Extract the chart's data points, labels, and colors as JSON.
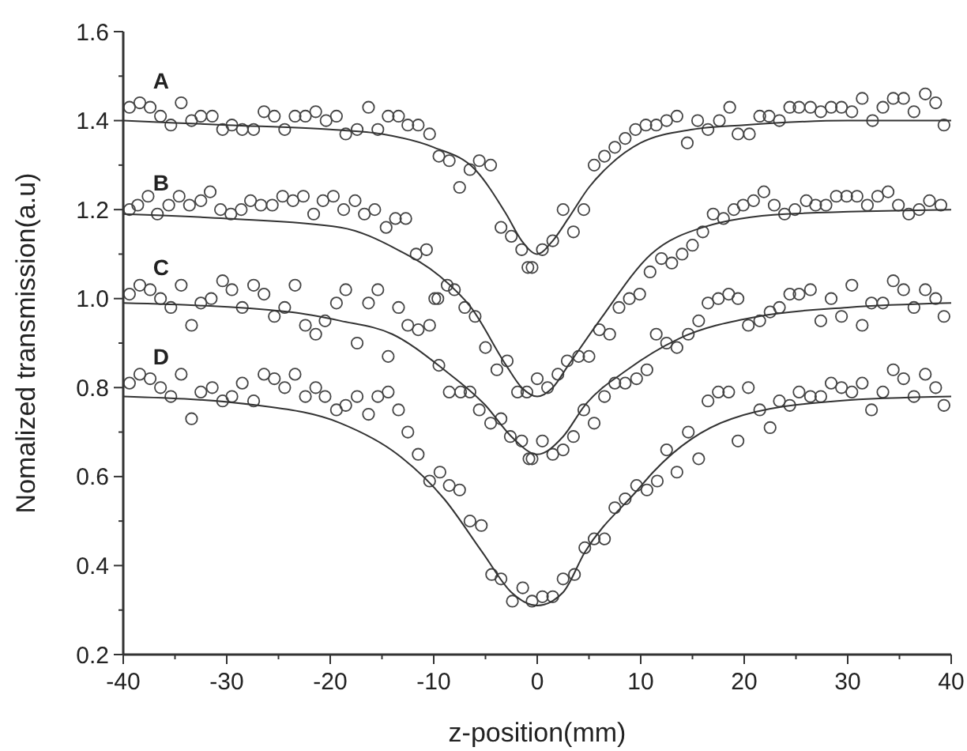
{
  "chart_data": {
    "type": "scatter",
    "xlabel": "z-position(mm)",
    "ylabel": "Nomalized transmission(a.u)",
    "xlim": [
      -40,
      40
    ],
    "ylim": [
      0.2,
      1.6
    ],
    "xticks": [
      -40,
      {
        "value": -35,
        "label": null
      },
      -30,
      {
        "value": -25,
        "label": null
      },
      -20,
      {
        "value": -15,
        "label": null
      },
      -10,
      {
        "value": -5,
        "label": null
      },
      0,
      {
        "value": 5,
        "label": null
      },
      10,
      {
        "value": 15,
        "label": null
      },
      20,
      {
        "value": 25,
        "label": null
      },
      30,
      {
        "value": 35,
        "label": null
      },
      40
    ],
    "yticks": [
      0.2,
      {
        "value": 0.3,
        "label": null
      },
      0.4,
      {
        "value": 0.5,
        "label": null
      },
      0.6,
      {
        "value": 0.7,
        "label": null
      },
      0.8,
      {
        "value": 0.9,
        "label": null
      },
      {
        "value": 1,
        "label": "1.0"
      },
      {
        "value": 1.1,
        "label": null
      },
      1.2,
      {
        "value": 1.3,
        "label": null
      },
      1.4,
      {
        "value": 1.5,
        "label": null
      },
      1.6
    ],
    "marker": "circle",
    "series": [
      {
        "name": "A",
        "color": "#444444",
        "x": [
          -39.4,
          -38.4,
          -37.4,
          -36.4,
          -35.4,
          -34.4,
          -33.4,
          -32.5,
          -31.4,
          -30.4,
          -29.5,
          -28.5,
          -27.4,
          -26.4,
          -25.4,
          -24.4,
          -23.4,
          -22.4,
          -21.4,
          -20.4,
          -19.4,
          -18.5,
          -17.4,
          -16.3,
          -15.4,
          -14.4,
          -13.4,
          -12.5,
          -11.5,
          -10.4,
          -9.5,
          -8.5,
          -7.5,
          -6.5,
          -5.6,
          -4.5,
          -3.5,
          -2.5,
          -1.5,
          -0.9,
          -0.5,
          0.5,
          1.5,
          2.5,
          3.5,
          4.5,
          5.5,
          6.5,
          7.5,
          8.5,
          9.5,
          10.5,
          11.5,
          12.5,
          13.5,
          14.5,
          15.5,
          16.5,
          17.6,
          18.6,
          19.4,
          20.5,
          21.5,
          22.4,
          23.4,
          24.4,
          25.3,
          26.4,
          27.4,
          28.4,
          29.4,
          30.4,
          31.4,
          32.4,
          33.4,
          34.4,
          35.4,
          36.4,
          37.5,
          38.5,
          39.3
        ],
        "values": [
          1.43,
          1.44,
          1.43,
          1.41,
          1.39,
          1.44,
          1.4,
          1.41,
          1.41,
          1.38,
          1.39,
          1.38,
          1.38,
          1.42,
          1.41,
          1.38,
          1.41,
          1.41,
          1.42,
          1.4,
          1.41,
          1.37,
          1.38,
          1.43,
          1.38,
          1.41,
          1.41,
          1.39,
          1.39,
          1.37,
          1.32,
          1.31,
          1.25,
          1.29,
          1.31,
          1.3,
          1.16,
          1.14,
          1.11,
          1.07,
          1.07,
          1.11,
          1.13,
          1.2,
          1.15,
          1.2,
          1.3,
          1.32,
          1.34,
          1.36,
          1.38,
          1.39,
          1.39,
          1.4,
          1.41,
          1.35,
          1.4,
          1.38,
          1.4,
          1.43,
          1.37,
          1.37,
          1.41,
          1.41,
          1.4,
          1.43,
          1.43,
          1.43,
          1.42,
          1.43,
          1.43,
          1.42,
          1.45,
          1.4,
          1.43,
          1.45,
          1.45,
          1.42,
          1.46,
          1.44,
          1.39
        ]
      },
      {
        "name": "B",
        "color": "#444444",
        "x": [
          -39.4,
          -38.6,
          -37.6,
          -36.7,
          -35.6,
          -34.6,
          -33.6,
          -32.5,
          -31.6,
          -30.6,
          -29.6,
          -28.6,
          -27.7,
          -26.7,
          -25.6,
          -24.6,
          -23.6,
          -22.6,
          -21.6,
          -20.7,
          -19.7,
          -18.7,
          -17.6,
          -16.7,
          -15.7,
          -14.6,
          -13.7,
          -12.7,
          -11.7,
          -10.7,
          -9.6,
          -8.7,
          -8.0,
          -7.0,
          -6.0,
          -5.0,
          -3.9,
          -2.9,
          -1.9,
          -1.0,
          0,
          1.0,
          2.0,
          2.9,
          4.0,
          5.0,
          6.0,
          7.0,
          7.9,
          8.9,
          9.9,
          10.9,
          12.0,
          13.0,
          14.0,
          15.0,
          16.0,
          17.0,
          18.0,
          19.0,
          19.9,
          20.9,
          21.9,
          22.9,
          23.9,
          24.9,
          26.0,
          26.9,
          27.9,
          28.9,
          29.9,
          30.9,
          31.9,
          32.9,
          33.9,
          34.9,
          35.9,
          36.9,
          37.9,
          39.0
        ],
        "values": [
          1.2,
          1.21,
          1.23,
          1.19,
          1.21,
          1.23,
          1.21,
          1.22,
          1.24,
          1.2,
          1.19,
          1.2,
          1.22,
          1.21,
          1.21,
          1.23,
          1.22,
          1.23,
          1.19,
          1.22,
          1.23,
          1.2,
          1.22,
          1.19,
          1.2,
          1.16,
          1.18,
          1.18,
          1.1,
          1.11,
          1.0,
          1.03,
          1.02,
          0.98,
          0.96,
          0.89,
          0.84,
          0.86,
          0.79,
          0.79,
          0.82,
          0.8,
          0.83,
          0.86,
          0.87,
          0.87,
          0.93,
          0.92,
          0.98,
          1.0,
          1.01,
          1.06,
          1.09,
          1.08,
          1.1,
          1.12,
          1.15,
          1.19,
          1.18,
          1.2,
          1.21,
          1.22,
          1.24,
          1.21,
          1.19,
          1.2,
          1.22,
          1.21,
          1.21,
          1.23,
          1.23,
          1.23,
          1.21,
          1.23,
          1.24,
          1.21,
          1.19,
          1.2,
          1.22,
          1.21
        ]
      },
      {
        "name": "C",
        "color": "#444444",
        "x": [
          -39.4,
          -38.4,
          -37.4,
          -36.4,
          -35.4,
          -34.4,
          -33.4,
          -32.5,
          -31.5,
          -30.4,
          -29.5,
          -28.5,
          -27.4,
          -26.4,
          -25.4,
          -24.4,
          -23.4,
          -22.4,
          -21.4,
          -20.5,
          -19.4,
          -18.5,
          -17.4,
          -16.3,
          -15.4,
          -14.4,
          -13.4,
          -12.5,
          -11.5,
          -10.4,
          -9.9,
          -9.5,
          -8.5,
          -7.4,
          -6.5,
          -5.6,
          -4.5,
          -3.5,
          -2.6,
          -1.5,
          -0.8,
          -0.5,
          0.5,
          1.5,
          2.5,
          3.5,
          4.5,
          5.5,
          6.5,
          7.5,
          8.5,
          9.6,
          10.6,
          11.5,
          12.5,
          13.5,
          14.6,
          15.6,
          16.5,
          17.5,
          18.5,
          19.4,
          20.4,
          21.5,
          22.5,
          23.4,
          24.4,
          25.3,
          26.4,
          27.4,
          28.4,
          29.4,
          30.4,
          31.4,
          32.3,
          33.4,
          34.4,
          35.4,
          36.4,
          37.5,
          38.5,
          39.3
        ],
        "values": [
          1.01,
          1.03,
          1.02,
          1.0,
          0.98,
          1.03,
          0.94,
          0.99,
          1.0,
          1.04,
          1.02,
          0.98,
          1.03,
          1.01,
          0.96,
          0.98,
          1.03,
          0.94,
          0.92,
          0.95,
          0.99,
          1.02,
          0.9,
          0.99,
          1.02,
          0.87,
          0.98,
          0.94,
          0.93,
          0.94,
          1.0,
          0.85,
          0.79,
          0.79,
          0.79,
          0.75,
          0.72,
          0.73,
          0.69,
          0.68,
          0.64,
          0.64,
          0.68,
          0.65,
          0.66,
          0.69,
          0.75,
          0.72,
          0.78,
          0.81,
          0.81,
          0.82,
          0.84,
          0.92,
          0.9,
          0.89,
          0.92,
          0.95,
          0.99,
          1.0,
          1.01,
          1.0,
          0.94,
          0.95,
          0.97,
          0.98,
          1.01,
          1.01,
          1.02,
          0.95,
          1.0,
          0.96,
          1.03,
          0.94,
          0.99,
          0.99,
          1.04,
          1.02,
          0.98,
          1.02,
          1.0,
          0.96
        ]
      },
      {
        "name": "D",
        "color": "#444444",
        "x": [
          -39.4,
          -38.4,
          -37.4,
          -36.4,
          -35.4,
          -34.4,
          -33.4,
          -32.5,
          -31.4,
          -30.4,
          -29.5,
          -28.5,
          -27.4,
          -26.4,
          -25.4,
          -24.4,
          -23.4,
          -22.4,
          -21.4,
          -20.5,
          -19.4,
          -18.5,
          -17.4,
          -16.3,
          -15.4,
          -14.4,
          -13.4,
          -12.5,
          -11.5,
          -10.4,
          -9.4,
          -8.5,
          -7.5,
          -6.5,
          -5.4,
          -4.4,
          -3.5,
          -2.4,
          -1.4,
          -0.5,
          0.5,
          1.5,
          2.5,
          3.6,
          4.6,
          5.5,
          6.5,
          7.5,
          8.5,
          9.6,
          10.6,
          11.6,
          12.5,
          13.5,
          14.6,
          15.6,
          16.5,
          17.5,
          18.5,
          19.4,
          20.4,
          21.5,
          22.5,
          23.4,
          24.4,
          25.3,
          26.4,
          27.4,
          28.4,
          29.4,
          30.4,
          31.4,
          32.3,
          33.4,
          34.4,
          35.4,
          36.4,
          37.5,
          38.5,
          39.3
        ],
        "values": [
          0.81,
          0.83,
          0.82,
          0.8,
          0.78,
          0.83,
          0.73,
          0.79,
          0.8,
          0.77,
          0.78,
          0.81,
          0.77,
          0.83,
          0.82,
          0.8,
          0.83,
          0.78,
          0.8,
          0.78,
          0.75,
          0.76,
          0.78,
          0.74,
          0.78,
          0.79,
          0.75,
          0.7,
          0.65,
          0.59,
          0.61,
          0.58,
          0.57,
          0.5,
          0.49,
          0.38,
          0.37,
          0.32,
          0.35,
          0.32,
          0.33,
          0.33,
          0.37,
          0.38,
          0.44,
          0.46,
          0.46,
          0.53,
          0.55,
          0.58,
          0.57,
          0.59,
          0.66,
          0.61,
          0.7,
          0.64,
          0.77,
          0.79,
          0.79,
          0.68,
          0.8,
          0.75,
          0.71,
          0.77,
          0.76,
          0.79,
          0.78,
          0.78,
          0.81,
          0.8,
          0.79,
          0.81,
          0.75,
          0.79,
          0.84,
          0.82,
          0.78,
          0.83,
          0.8,
          0.76
        ]
      },
      {
        "type": "line",
        "color": "#333333",
        "marker": "none",
        "x": [
          -40,
          -30,
          -20,
          -15,
          -10,
          -6,
          -3,
          -1.5,
          0,
          1.5,
          3,
          5,
          7,
          10,
          15,
          20,
          30,
          40
        ],
        "values": [
          1.4,
          1.39,
          1.38,
          1.37,
          1.34,
          1.29,
          1.19,
          1.13,
          1.1,
          1.13,
          1.18,
          1.25,
          1.3,
          1.35,
          1.38,
          1.39,
          1.4,
          1.4
        ]
      },
      {
        "type": "line",
        "color": "#333333",
        "marker": "none",
        "x": [
          -40,
          -30,
          -19,
          -13.5,
          -9.4,
          -6.4,
          -3,
          -1.5,
          0,
          1.5,
          3,
          6,
          11,
          16,
          24,
          40
        ],
        "values": [
          1.19,
          1.18,
          1.16,
          1.11,
          1.05,
          0.98,
          0.85,
          0.8,
          0.78,
          0.8,
          0.85,
          0.95,
          1.1,
          1.16,
          1.19,
          1.2
        ]
      },
      {
        "type": "line",
        "color": "#333333",
        "marker": "none",
        "x": [
          -40,
          -24,
          -19,
          -14,
          -9,
          -5,
          -2.5,
          0,
          2.5,
          4.6,
          8.7,
          13.7,
          21.4,
          30,
          40
        ],
        "values": [
          0.99,
          0.97,
          0.95,
          0.92,
          0.84,
          0.76,
          0.69,
          0.65,
          0.69,
          0.76,
          0.84,
          0.91,
          0.96,
          0.98,
          0.99
        ]
      },
      {
        "type": "line",
        "color": "#333333",
        "marker": "none",
        "x": [
          -40,
          -27,
          -19,
          -13.5,
          -9,
          -5.3,
          -2.5,
          0,
          2.5,
          4.6,
          9.7,
          11.2,
          18.8,
          29,
          40
        ],
        "values": [
          0.78,
          0.76,
          0.72,
          0.65,
          0.55,
          0.43,
          0.34,
          0.31,
          0.34,
          0.43,
          0.57,
          0.61,
          0.73,
          0.77,
          0.78
        ]
      }
    ]
  }
}
